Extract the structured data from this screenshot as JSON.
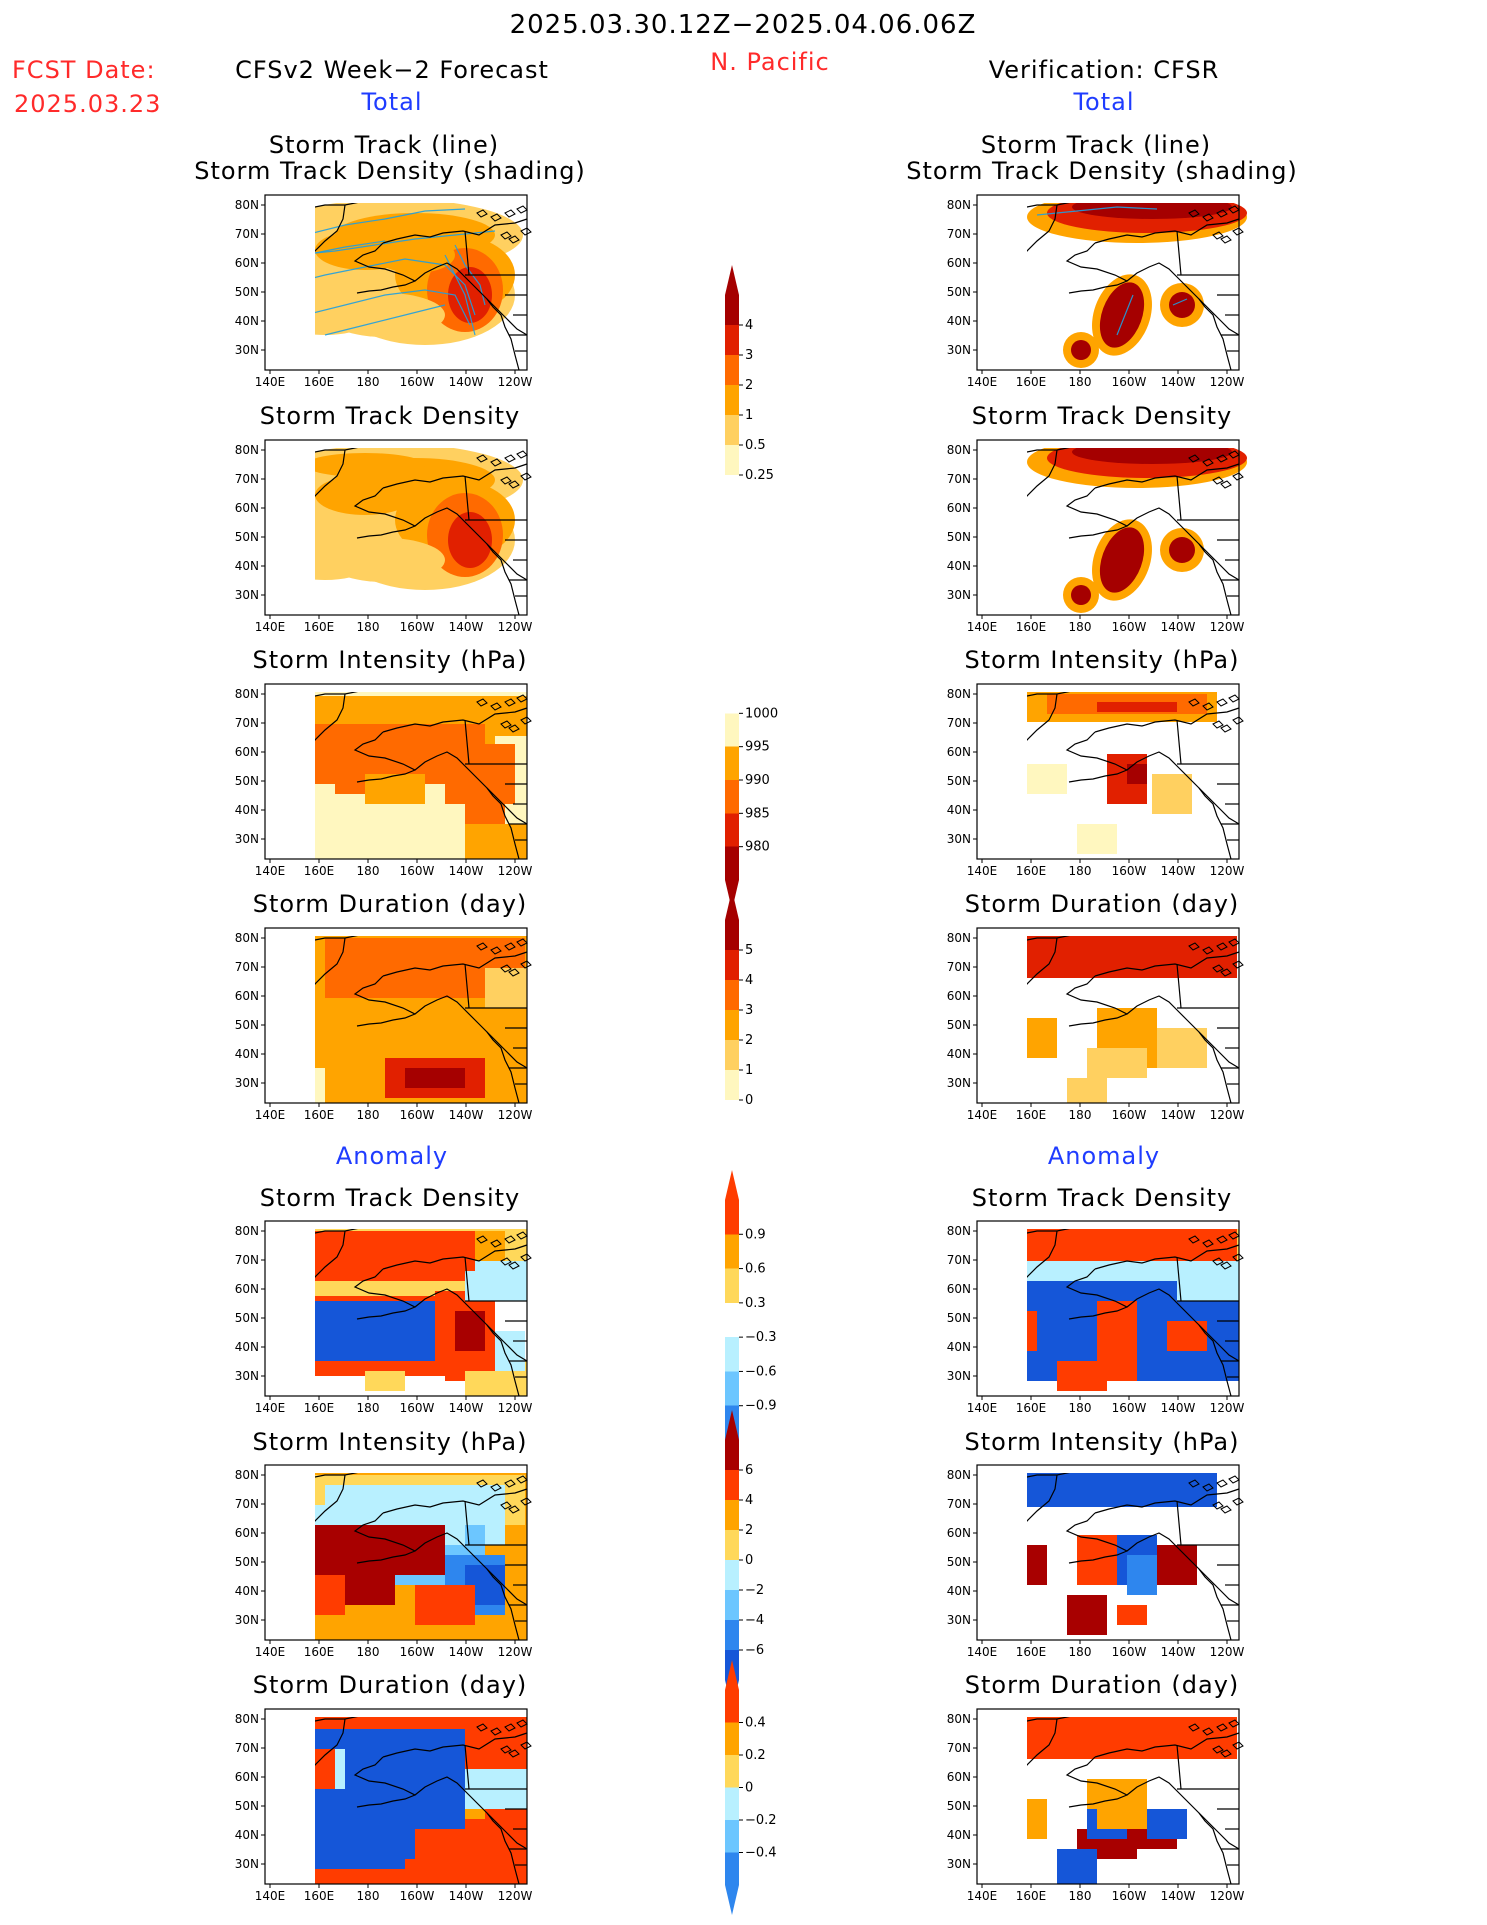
{
  "header": {
    "period": "2025.03.30.12Z−2025.04.06.06Z",
    "fcst_label": "FCST Date:",
    "fcst_date": "2025.03.23",
    "forecast_title": "CFSv2 Week−2 Forecast",
    "region": "N. Pacific",
    "verification_title": "Verification: CFSR"
  },
  "section_labels": {
    "total": "Total",
    "anomaly": "Anomaly"
  },
  "panel_titles": {
    "track_line": "Storm Track (line)",
    "track_density_shading": "Storm Track Density (shading)",
    "track_density": "Storm Track Density",
    "intensity": "Storm Intensity (hPa)",
    "duration": "Storm Duration (day)"
  },
  "map_axes": {
    "lat_ticks": [
      "80N",
      "70N",
      "60N",
      "50N",
      "40N",
      "30N"
    ],
    "lon_ticks": [
      "140E",
      "160E",
      "180",
      "160W",
      "140W",
      "120W"
    ]
  },
  "colorbars": {
    "track_density_total": [
      "4",
      "3",
      "2",
      "1",
      "0.5",
      "0.25"
    ],
    "intensity_total": [
      "1000",
      "995",
      "990",
      "985",
      "980"
    ],
    "duration_total": [
      "5",
      "4",
      "3",
      "2",
      "1",
      "0"
    ],
    "track_density_anom": [
      "0.9",
      "0.6",
      "0.3",
      "−0.3",
      "−0.6",
      "−0.9"
    ],
    "intensity_anom": [
      "6",
      "4",
      "2",
      "0",
      "−2",
      "−4",
      "−6"
    ],
    "duration_anom": [
      "0.4",
      "0.2",
      "0",
      "−0.2",
      "−0.4"
    ]
  },
  "colors": {
    "warm": [
      "#fff7bf",
      "#ffd060",
      "#ffa400",
      "#ff6a00",
      "#e12000",
      "#a50000"
    ],
    "anom_pos": [
      "#ffd85a",
      "#ffa400",
      "#ff3c00",
      "#a80000"
    ],
    "anom_neg": [
      "#b8f0ff",
      "#6cc6ff",
      "#2e86ee",
      "#1556d8"
    ],
    "track_line": "#1f9fe0",
    "coast": "#000000"
  }
}
